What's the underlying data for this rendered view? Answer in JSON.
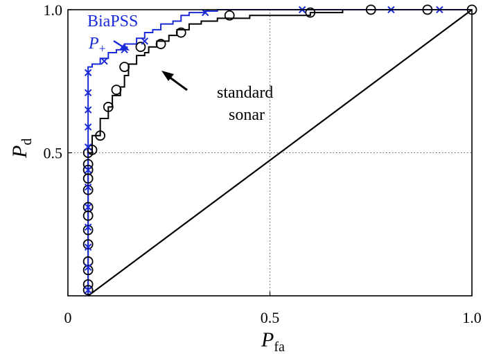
{
  "chart_data": {
    "type": "line",
    "title": "",
    "xlabel": {
      "main": "P",
      "sub": "fa"
    },
    "ylabel": {
      "main": "P",
      "sub": "d"
    },
    "xlim": [
      0,
      1
    ],
    "ylim": [
      0,
      1
    ],
    "x_ticks": [
      {
        "value": 0,
        "label": "0"
      },
      {
        "value": 0.5,
        "label": "0.5"
      },
      {
        "value": 1,
        "label": "1.0"
      }
    ],
    "y_ticks": [
      {
        "value": 0.5,
        "label": "0.5"
      },
      {
        "value": 1,
        "label": "1.0"
      }
    ],
    "grid": {
      "dotted_lines_at": [
        0.5
      ]
    },
    "colors": {
      "biapss": "#1a2ad8",
      "standard": "#000000",
      "chance": "#000000"
    },
    "series": [
      {
        "name": "BiaPSS",
        "marker": "x",
        "x": [
          0.05,
          0.05,
          0.05,
          0.05,
          0.05,
          0.05,
          0.05,
          0.05,
          0.05,
          0.05,
          0.05,
          0.05,
          0.05,
          0.05,
          0.05,
          0.05,
          0.05,
          0.05,
          0.05,
          0.06,
          0.06,
          0.08,
          0.08,
          0.1,
          0.1,
          0.12,
          0.12,
          0.14,
          0.14,
          0.17,
          0.17,
          0.19,
          0.19,
          0.21,
          0.21,
          0.23,
          0.23,
          0.26,
          0.26,
          0.28,
          0.28,
          0.3,
          0.3,
          0.34,
          0.34,
          0.37,
          0.37,
          0.62,
          0.62,
          0.8,
          0.8,
          1.0
        ],
        "y": [
          0.0,
          0.02,
          0.04,
          0.1,
          0.17,
          0.24,
          0.31,
          0.38,
          0.44,
          0.52,
          0.59,
          0.65,
          0.71,
          0.74,
          0.76,
          0.78,
          0.8,
          0.8,
          0.8,
          0.8,
          0.81,
          0.81,
          0.83,
          0.83,
          0.85,
          0.85,
          0.86,
          0.86,
          0.88,
          0.88,
          0.9,
          0.9,
          0.92,
          0.92,
          0.93,
          0.93,
          0.95,
          0.95,
          0.96,
          0.96,
          0.98,
          0.98,
          0.99,
          0.99,
          0.995,
          0.995,
          1.0,
          1.0,
          1.0,
          1.0,
          1.0,
          1.0
        ],
        "marker_x": [
          0.05,
          0.05,
          0.05,
          0.05,
          0.05,
          0.05,
          0.05,
          0.05,
          0.05,
          0.05,
          0.05,
          0.05,
          0.09,
          0.14,
          0.19,
          0.34,
          0.58,
          0.8,
          0.92
        ],
        "marker_y": [
          0.02,
          0.1,
          0.17,
          0.24,
          0.31,
          0.38,
          0.44,
          0.52,
          0.59,
          0.65,
          0.71,
          0.78,
          0.82,
          0.86,
          0.89,
          0.99,
          1.0,
          1.0,
          1.0
        ]
      },
      {
        "name": "standard sonar",
        "marker": "o",
        "x": [
          0.05,
          0.05,
          0.05,
          0.05,
          0.05,
          0.05,
          0.05,
          0.05,
          0.05,
          0.05,
          0.05,
          0.05,
          0.05,
          0.06,
          0.06,
          0.08,
          0.08,
          0.1,
          0.1,
          0.11,
          0.11,
          0.13,
          0.13,
          0.14,
          0.14,
          0.15,
          0.15,
          0.17,
          0.17,
          0.19,
          0.19,
          0.2,
          0.2,
          0.22,
          0.22,
          0.25,
          0.25,
          0.27,
          0.27,
          0.3,
          0.3,
          0.33,
          0.33,
          0.37,
          0.37,
          0.45,
          0.45,
          0.6,
          0.6,
          0.68,
          0.68,
          0.76,
          0.76,
          1.0
        ],
        "y": [
          0.0,
          0.03,
          0.08,
          0.15,
          0.22,
          0.29,
          0.35,
          0.41,
          0.46,
          0.47,
          0.49,
          0.5,
          0.5,
          0.5,
          0.56,
          0.56,
          0.62,
          0.62,
          0.66,
          0.66,
          0.7,
          0.7,
          0.73,
          0.73,
          0.77,
          0.77,
          0.81,
          0.81,
          0.84,
          0.84,
          0.85,
          0.85,
          0.87,
          0.87,
          0.89,
          0.89,
          0.91,
          0.91,
          0.93,
          0.93,
          0.95,
          0.95,
          0.96,
          0.96,
          0.97,
          0.97,
          0.98,
          0.98,
          0.99,
          0.99,
          1.0,
          1.0,
          1.0,
          1.0
        ],
        "marker_x": [
          0.05,
          0.05,
          0.05,
          0.05,
          0.05,
          0.05,
          0.05,
          0.05,
          0.05,
          0.05,
          0.05,
          0.05,
          0.05,
          0.06,
          0.08,
          0.1,
          0.12,
          0.14,
          0.18,
          0.23,
          0.28,
          0.4,
          0.6,
          0.75,
          0.89,
          1.0
        ],
        "marker_y": [
          0.02,
          0.04,
          0.09,
          0.12,
          0.18,
          0.23,
          0.28,
          0.31,
          0.37,
          0.41,
          0.44,
          0.46,
          0.5,
          0.51,
          0.56,
          0.66,
          0.72,
          0.8,
          0.87,
          0.88,
          0.92,
          0.98,
          0.99,
          1.0,
          1.0,
          1.0
        ]
      },
      {
        "name": "",
        "marker": "none",
        "x": [
          0.05,
          1.0
        ],
        "y": [
          0.0,
          1.0
        ]
      }
    ],
    "annotations": [
      {
        "text": "BiaPSS",
        "color": "#1a2ad8"
      },
      {
        "text": "P",
        "sub": "+",
        "color": "#1a2ad8"
      },
      {
        "text": "standard",
        "color": "#000000"
      },
      {
        "text": "sonar",
        "color": "#000000"
      }
    ]
  }
}
